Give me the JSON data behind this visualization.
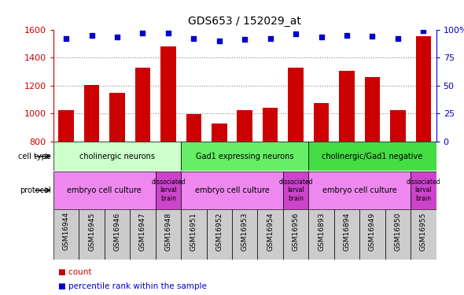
{
  "title": "GDS653 / 152029_at",
  "samples": [
    "GSM16944",
    "GSM16945",
    "GSM16946",
    "GSM16947",
    "GSM16948",
    "GSM16951",
    "GSM16952",
    "GSM16953",
    "GSM16954",
    "GSM16956",
    "GSM16893",
    "GSM16894",
    "GSM16949",
    "GSM16950",
    "GSM16955"
  ],
  "counts": [
    1027,
    1207,
    1148,
    1328,
    1478,
    997,
    927,
    1025,
    1043,
    1330,
    1075,
    1307,
    1260,
    1027,
    1553
  ],
  "percentile_ranks": [
    92,
    95,
    93,
    97,
    97,
    92,
    90,
    91,
    92,
    96,
    93,
    95,
    94,
    92,
    99
  ],
  "ylim_left": [
    800,
    1600
  ],
  "ylim_right": [
    0,
    100
  ],
  "yticks_left": [
    800,
    1000,
    1200,
    1400,
    1600
  ],
  "yticks_right": [
    0,
    25,
    50,
    75,
    100
  ],
  "bar_color": "#cc0000",
  "dot_color": "#0000cc",
  "xticklabel_bg": "#cccccc",
  "cell_types": [
    {
      "label": "cholinergic neurons",
      "start": 0,
      "end": 5,
      "color": "#ccffcc"
    },
    {
      "label": "Gad1 expressing neurons",
      "start": 5,
      "end": 10,
      "color": "#66ee66"
    },
    {
      "label": "cholinergic/Gad1 negative",
      "start": 10,
      "end": 15,
      "color": "#44dd44"
    }
  ],
  "protocols": [
    {
      "label": "embryo cell culture",
      "start": 0,
      "end": 4,
      "color": "#ee88ee"
    },
    {
      "label": "dissociated\nlarval\nbrain",
      "start": 4,
      "end": 5,
      "color": "#cc44cc"
    },
    {
      "label": "embryo cell culture",
      "start": 5,
      "end": 9,
      "color": "#ee88ee"
    },
    {
      "label": "dissociated\nlarval\nbrain",
      "start": 9,
      "end": 10,
      "color": "#cc44cc"
    },
    {
      "label": "embryo cell culture",
      "start": 10,
      "end": 14,
      "color": "#ee88ee"
    },
    {
      "label": "dissociated\nlarval\nbrain",
      "start": 14,
      "end": 15,
      "color": "#cc44cc"
    }
  ],
  "bg_color": "#ffffff",
  "grid_color": "#888888",
  "left_axis_color": "#cc0000",
  "right_axis_color": "#0000cc"
}
